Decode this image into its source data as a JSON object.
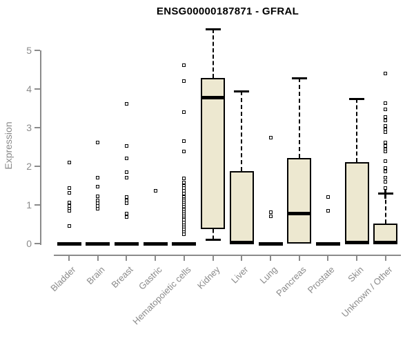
{
  "chart_data": {
    "type": "box",
    "title": "ENSG00000187871 - GFRAL",
    "ylabel": "Expression",
    "xlabel": "",
    "yticks": [
      0,
      1,
      2,
      3,
      4,
      5
    ],
    "ylim": [
      0,
      5.6
    ],
    "grid": false,
    "legend": "none",
    "categories": [
      "Bladder",
      "Brain",
      "Breast",
      "Gastric",
      "Hematopoietic cells",
      "Kidney",
      "Liver",
      "Lung",
      "Pancreas",
      "Prostate",
      "Skin",
      "Unknown / Other"
    ],
    "boxes": [
      {
        "category": "Bladder",
        "q1": 0,
        "median": 0,
        "q3": 0,
        "whisker_low": 0,
        "whisker_high": 0,
        "outliers": [
          2.1,
          1.43,
          1.32,
          1.07,
          0.97,
          0.9,
          0.84,
          0.46
        ]
      },
      {
        "category": "Brain",
        "q1": 0,
        "median": 0,
        "q3": 0,
        "whisker_low": 0,
        "whisker_high": 0,
        "outliers": [
          2.61,
          1.71,
          1.48,
          1.23,
          1.12,
          1.05,
          0.97,
          0.9
        ]
      },
      {
        "category": "Breast",
        "q1": 0,
        "median": 0,
        "q3": 0,
        "whisker_low": 0,
        "whisker_high": 0,
        "outliers": [
          3.61,
          2.52,
          2.21,
          1.84,
          1.7,
          1.21,
          1.12,
          1.04,
          0.77,
          0.68
        ]
      },
      {
        "category": "Gastric",
        "q1": 0,
        "median": 0,
        "q3": 0,
        "whisker_low": 0,
        "whisker_high": 0,
        "outliers": [
          1.36
        ]
      },
      {
        "category": "Hematopoietic cells",
        "q1": 0,
        "median": 0,
        "q3": 0,
        "whisker_low": 0,
        "whisker_high": 0,
        "outliers": [
          4.61,
          4.21,
          3.41,
          2.66,
          2.39,
          1.68,
          1.58,
          1.5,
          1.43,
          1.36,
          1.3,
          1.21,
          1.16,
          1.11,
          1.06,
          1.01,
          0.96,
          0.91,
          0.86,
          0.81,
          0.76,
          0.71,
          0.66,
          0.61,
          0.55,
          0.48,
          0.42,
          0.36,
          0.3,
          0.24
        ]
      },
      {
        "category": "Kidney",
        "q1": 0.37,
        "median": 3.78,
        "q3": 4.28,
        "whisker_low": 0.1,
        "whisker_high": 5.55,
        "outliers": []
      },
      {
        "category": "Liver",
        "q1": 0,
        "median": 0.03,
        "q3": 1.87,
        "whisker_low": 0,
        "whisker_high": 3.95,
        "outliers": []
      },
      {
        "category": "Lung",
        "q1": 0,
        "median": 0,
        "q3": 0,
        "whisker_low": 0,
        "whisker_high": 0,
        "outliers": [
          2.75,
          0.82,
          0.71
        ]
      },
      {
        "category": "Pancreas",
        "q1": 0,
        "median": 0.78,
        "q3": 2.21,
        "whisker_low": 0,
        "whisker_high": 4.29,
        "outliers": []
      },
      {
        "category": "Prostate",
        "q1": 0,
        "median": 0,
        "q3": 0,
        "whisker_low": 0,
        "whisker_high": 0,
        "outliers": [
          1.2,
          0.84
        ]
      },
      {
        "category": "Skin",
        "q1": 0,
        "median": 0.02,
        "q3": 2.11,
        "whisker_low": 0,
        "whisker_high": 3.75,
        "outliers": []
      },
      {
        "category": "Unknown / Other",
        "q1": 0,
        "median": 0.02,
        "q3": 0.52,
        "whisker_low": 0,
        "whisker_high": 1.3,
        "cap_style": "plus",
        "outliers": [
          4.41,
          3.63,
          3.48,
          3.27,
          3.18,
          3.05,
          2.95,
          2.88,
          2.61,
          2.52,
          2.44,
          2.38,
          2.14,
          1.96,
          1.87,
          1.71,
          1.6,
          1.43
        ]
      }
    ],
    "colors": {
      "box_fill": "#EDE8D0",
      "box_border": "#000000",
      "median": "#000000",
      "axis": "#8A8A8A",
      "tick_label": "#8A8A8A",
      "title": "#000000",
      "background": "#FFFFFF"
    }
  }
}
